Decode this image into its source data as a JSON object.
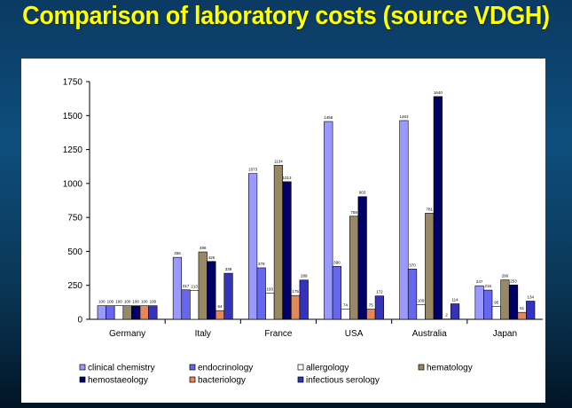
{
  "title": "Comparison of laboratory costs (source VDGH)",
  "colors": {
    "background_top": "#0b3a63",
    "title_color": "#ffff00",
    "panel": "#ffffff"
  },
  "chart_data": {
    "type": "bar",
    "categories": [
      "Germany",
      "Italy",
      "France",
      "USA",
      "Australia",
      "Japan"
    ],
    "ylim": [
      0,
      1750
    ],
    "yticks": [
      "0",
      "250",
      "500",
      "750",
      "1000",
      "1250",
      "1500",
      "1750"
    ],
    "grid": false,
    "legend_position": "bottom",
    "series": [
      {
        "name": "clinical chemistry",
        "color": "#9999ff",
        "values": [
          100,
          456,
          1073,
          1456,
          1463,
          247
        ],
        "labels": [
          "100",
          "456",
          "1073",
          "1456",
          "1463",
          "247"
        ]
      },
      {
        "name": "endocrinology",
        "color": "#6666ee",
        "values": [
          100,
          217,
          379,
          390,
          370,
          215
        ],
        "labels": [
          "100",
          "217",
          "379",
          "390",
          "370",
          "215"
        ]
      },
      {
        "name": "allergology",
        "color": "#ffffff",
        "values": [
          100,
          213,
          193,
          74,
          109,
          95
        ],
        "labels": [
          "100",
          "213",
          "193",
          "74",
          "109",
          "95"
        ]
      },
      {
        "name": "hematology",
        "color": "#998866",
        "values": [
          100,
          496,
          1134,
          759,
          781,
          290
        ],
        "labels": [
          "100",
          "496",
          "1134",
          "759",
          "781",
          "290"
        ]
      },
      {
        "name": "hemostaeology",
        "color": "#000066",
        "values": [
          100,
          426,
          1013,
          903,
          1640,
          253
        ],
        "labels": [
          "100",
          "426",
          "1013",
          "903",
          "1640",
          "253"
        ]
      },
      {
        "name": "bacteriology",
        "color": "#e2885a",
        "values": [
          100,
          64,
          175,
          75,
          2,
          51
        ],
        "labels": [
          "100",
          "64",
          "175",
          "75",
          "2",
          "51"
        ]
      },
      {
        "name": "infectious serology",
        "color": "#3333bb",
        "values": [
          100,
          339,
          289,
          172,
          114,
          134
        ],
        "labels": [
          "100",
          "339",
          "289",
          "172",
          "114",
          "134"
        ]
      }
    ]
  }
}
